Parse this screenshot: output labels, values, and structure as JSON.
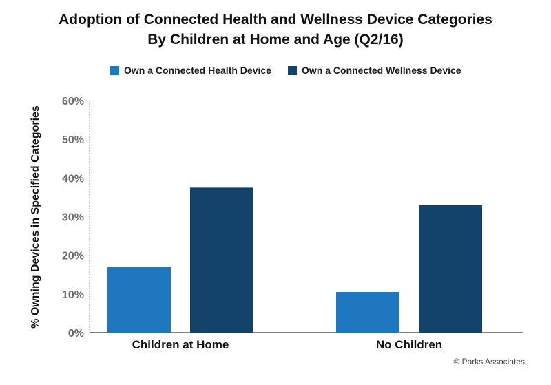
{
  "chart_data": {
    "type": "bar",
    "title": "Adoption of Connected Health and Wellness Device Categories",
    "subtitle": "By Children at Home and Age (Q2/16)",
    "ylabel": "% Owning Devices in Specified Categories",
    "xlabel": "",
    "categories": [
      "Children at Home",
      "No Children"
    ],
    "series": [
      {
        "name": "Own a Connected Health Device",
        "color": "#1f77c0",
        "values": [
          17,
          10.5
        ]
      },
      {
        "name": "Own a Connected Wellness Device",
        "color": "#13426b",
        "values": [
          37.5,
          33
        ]
      }
    ],
    "ylim": [
      0,
      60
    ],
    "yticks": [
      0,
      10,
      20,
      30,
      40,
      50,
      60
    ],
    "ytick_labels": [
      "0%",
      "10%",
      "20%",
      "30%",
      "40%",
      "50%",
      "60%"
    ],
    "legend": "top-center",
    "grid": false
  },
  "credit": "© Parks Associates"
}
